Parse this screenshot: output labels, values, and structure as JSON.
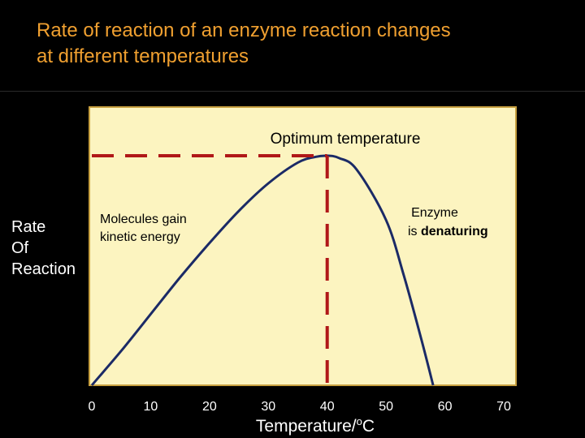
{
  "slide": {
    "title_line1": "Rate of reaction of an enzyme reaction changes",
    "title_line2": "at different temperatures"
  },
  "chart_data": {
    "type": "line",
    "title": "",
    "xlabel": "Temperature/°C",
    "xlabel_parts": {
      "main": "Temperature/",
      "sup": "o",
      "unit": "C"
    },
    "ylabel_lines": [
      "Rate",
      "Of",
      "Reaction"
    ],
    "x_ticks": [
      0,
      10,
      20,
      30,
      40,
      50,
      60,
      70
    ],
    "xlim": [
      0,
      70
    ],
    "ylim": [
      0,
      100
    ],
    "series": [
      {
        "x": [
          0,
          5,
          10,
          15,
          20,
          25,
          30,
          35,
          38,
          40,
          42,
          45,
          50,
          53,
          56,
          58
        ],
        "y": [
          0,
          15,
          31,
          47,
          62,
          76,
          88,
          97,
          99.5,
          100,
          99,
          94,
          72,
          48,
          20,
          0
        ]
      }
    ],
    "optimum_x": 40,
    "annotations": {
      "optimum": "Optimum temperature",
      "rising_line1": "Molecules gain",
      "rising_line2": "kinetic energy",
      "falling_line1": "Enzyme",
      "falling_line2_prefix": "is ",
      "falling_line2_bold": "denaturing"
    },
    "colors": {
      "plot_background": "#fcf4c0",
      "plot_border": "#c8a040",
      "curve": "#1b2a66",
      "dashed": "#b01818",
      "title": "#f0a030"
    }
  }
}
